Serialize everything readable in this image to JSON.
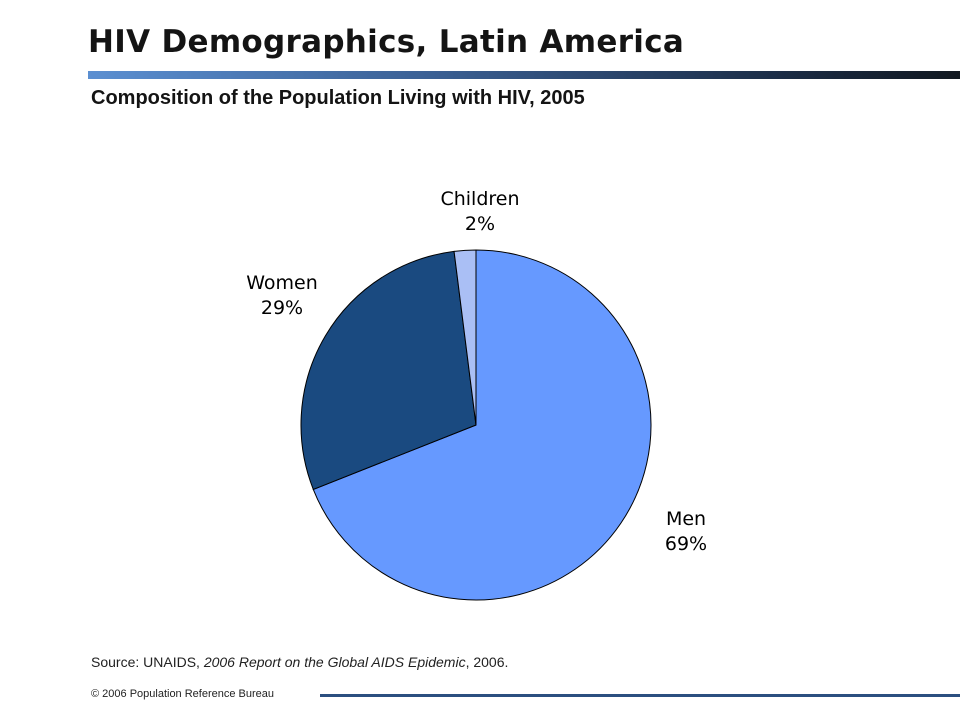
{
  "header": {
    "title": "HIV Demographics, Latin America",
    "subtitle": "Composition of the Population Living with HIV, 2005"
  },
  "chart_data": {
    "type": "pie",
    "title": "Composition of the Population Living with HIV, 2005",
    "slices": [
      {
        "name": "Men",
        "value": 69,
        "label": "69%",
        "color": "#6699ff"
      },
      {
        "name": "Women",
        "value": 29,
        "label": "29%",
        "color": "#1a4a80"
      },
      {
        "name": "Children",
        "value": 2,
        "label": "2%",
        "color": "#aabff5"
      }
    ],
    "start": "12 o'clock",
    "direction": "clockwise",
    "legend": "none"
  },
  "source": {
    "prefix": "Source: UNAIDS, ",
    "title": "2006 Report on the Global AIDS Epidemic",
    "suffix": ", 2006."
  },
  "footer": {
    "copyright": "© 2006  Population Reference Bureau"
  }
}
